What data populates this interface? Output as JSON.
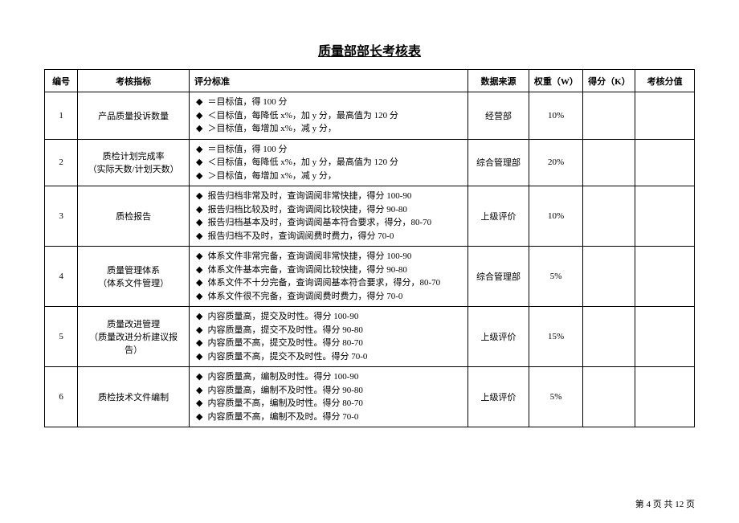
{
  "title": "质量部部长考核表",
  "headers": {
    "num": "编号",
    "indicator": "考核指标",
    "criteria": "评分标准",
    "source": "数据来源",
    "weight": "权重（W）",
    "score": "得分（K）",
    "value": "考核分值"
  },
  "rows": [
    {
      "num": "1",
      "indicator": "产品质量投诉数量",
      "criteria": [
        "＝目标值，得 100 分",
        "＜目标值，每降低 x%，加 y 分，最高值为 120 分",
        "＞目标值，每增加 x%，减 y 分，"
      ],
      "source": "经营部",
      "weight": "10%",
      "score": "",
      "value": ""
    },
    {
      "num": "2",
      "indicator": "质检计划完成率\n（实际天数/计划天数）",
      "criteria": [
        "＝目标值，得 100 分",
        "＜目标值，每降低 x%，加 y 分，最高值为 120 分",
        "＞目标值，每增加 x%，减 y 分，"
      ],
      "source": "综合管理部",
      "weight": "20%",
      "score": "",
      "value": ""
    },
    {
      "num": "3",
      "indicator": "质检报告",
      "criteria": [
        "报告归档非常及时，查询调阅非常快捷，得分 100-90",
        "报告归档比较及时，查询调阅比较快捷，得分 90-80",
        "报告归档基本及时，查询调阅基本符合要求，得分，80-70",
        "报告归档不及时，查询调阅费时费力，得分 70-0"
      ],
      "source": "上级评价",
      "weight": "10%",
      "score": "",
      "value": ""
    },
    {
      "num": "4",
      "indicator": "质量管理体系\n（体系文件管理）",
      "criteria": [
        "体系文件非常完备，查询调阅非常快捷，得分 100-90",
        "体系文件基本完备，查询调阅比较快捷，得分 90-80",
        "体系文件不十分完备，查询调阅基本符合要求，得分，80-70",
        "体系文件很不完备，查询调阅费时费力，得分 70-0"
      ],
      "source": "综合管理部",
      "weight": "5%",
      "score": "",
      "value": ""
    },
    {
      "num": "5",
      "indicator": "质量改进管理\n（质量改进分析建议报告）",
      "criteria": [
        "内容质量高，提交及时性。得分 100-90",
        "内容质量高，提交不及时性。得分 90-80",
        "内容质量不高，提交及时性。得分 80-70",
        "内容质量不高，提交不及时性。得分 70-0"
      ],
      "source": "上级评价",
      "weight": "15%",
      "score": "",
      "value": ""
    },
    {
      "num": "6",
      "indicator": "质检技术文件编制",
      "criteria": [
        "内容质量高，编制及时性。得分 100-90",
        "内容质量高，编制不及时性。得分 90-80",
        "内容质量不高，编制及时性。得分 80-70",
        "内容质量不高，编制不及时。得分 70-0"
      ],
      "source": "上级评价",
      "weight": "5%",
      "score": "",
      "value": ""
    }
  ],
  "footer": {
    "prefix": "第",
    "current_page": "4",
    "middle": "页 共",
    "total_pages": "12",
    "suffix": "页"
  },
  "colors": {
    "background": "#ffffff",
    "border": "#000000",
    "text": "#000000"
  },
  "typography": {
    "title_fontsize": 16,
    "table_fontsize": 11,
    "footer_fontsize": 11
  },
  "column_widths": {
    "num": 38,
    "indicator": 128,
    "criteria": 320,
    "source": 70,
    "weight": 62,
    "score": 60,
    "value": 68
  }
}
